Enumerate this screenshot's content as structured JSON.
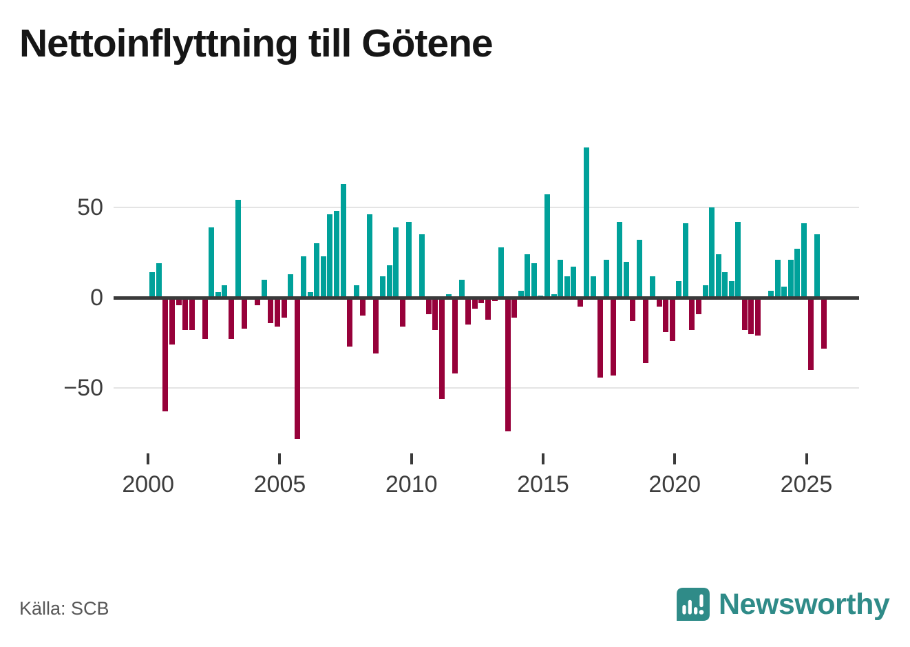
{
  "title": "Nettoinflyttning till Götene",
  "source": "Källa: SCB",
  "logo": {
    "text": "Newsworthy",
    "color": "#2f8b88"
  },
  "chart_data": {
    "type": "bar",
    "title": "Nettoinflyttning till Götene",
    "x_start": "2000-Q1",
    "frequency": "quarterly",
    "values": [
      14,
      19,
      -63,
      -26,
      -4,
      -18,
      -18,
      0,
      -23,
      39,
      3,
      7,
      -23,
      54,
      -17,
      0,
      -4,
      10,
      -14,
      -16,
      -11,
      13,
      -78,
      23,
      3,
      30,
      23,
      46,
      48,
      63,
      -27,
      7,
      -10,
      46,
      -31,
      12,
      18,
      39,
      -16,
      42,
      0,
      35,
      -9,
      -18,
      -56,
      2,
      -42,
      10,
      -15,
      -6,
      -3,
      -12,
      -2,
      28,
      -74,
      -11,
      4,
      24,
      19,
      1,
      57,
      2,
      21,
      12,
      17,
      -5,
      83,
      12,
      -44,
      21,
      -43,
      42,
      20,
      -13,
      32,
      -36,
      12,
      -5,
      -19,
      -24,
      9,
      41,
      -18,
      -9,
      7,
      50,
      24,
      14,
      9,
      42,
      -18,
      -20,
      -21,
      0,
      4,
      21,
      6,
      21,
      27,
      41,
      -40,
      35,
      -28
    ],
    "x_ticks": [
      {
        "year": 2000,
        "label": "2000"
      },
      {
        "year": 2005,
        "label": "2005"
      },
      {
        "year": 2010,
        "label": "2010"
      },
      {
        "year": 2015,
        "label": "2015"
      },
      {
        "year": 2020,
        "label": "2020"
      },
      {
        "year": 2025,
        "label": "2025"
      }
    ],
    "y_ticks": [
      {
        "value": 50,
        "label": "50"
      },
      {
        "value": 0,
        "label": "0"
      },
      {
        "value": -50,
        "label": "−50"
      }
    ],
    "ylim": [
      -80,
      90
    ],
    "grid": "horizontal",
    "legend": "none",
    "colors": {
      "positive": "#00a19a",
      "negative": "#97013a"
    }
  }
}
